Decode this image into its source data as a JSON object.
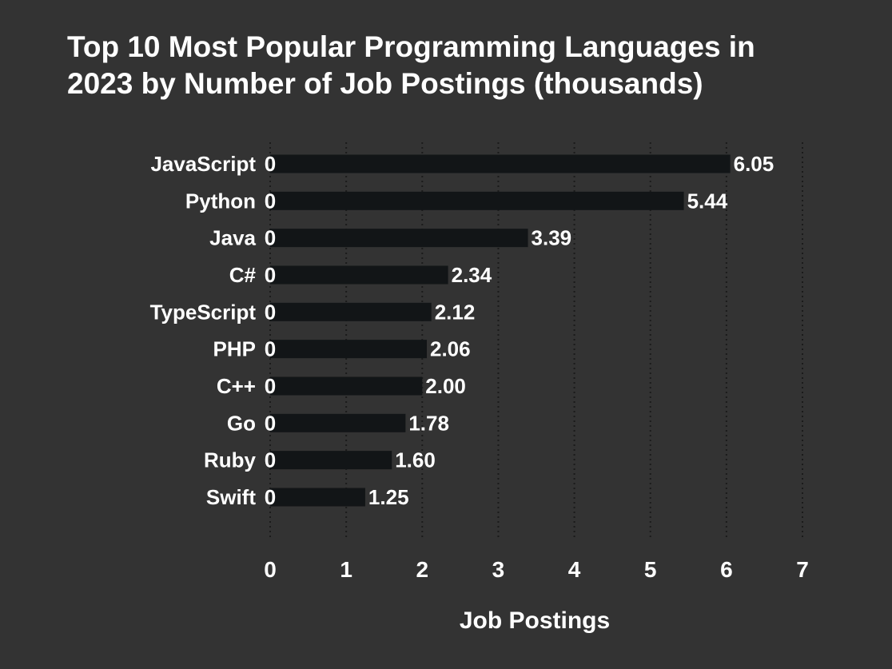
{
  "chart_data": {
    "type": "bar",
    "orientation": "horizontal",
    "title": "Top 10 Most Popular Programming Languages in 2023 by Number of Job Postings (thousands)",
    "categories": [
      "JavaScript",
      "Python",
      "Java",
      "C#",
      "TypeScript",
      "PHP",
      "C++",
      "Go",
      "Ruby",
      "Swift"
    ],
    "values": [
      6.05,
      5.44,
      3.39,
      2.34,
      2.12,
      2.06,
      2.0,
      1.78,
      1.6,
      1.25
    ],
    "xlabel": "Job Postings",
    "ylabel": "",
    "xlim": [
      0,
      7
    ],
    "xticks": [
      0,
      1,
      2,
      3,
      4,
      5,
      6,
      7
    ],
    "grid": "vertical dotted",
    "legend": "none",
    "data_labels": true,
    "colors": {
      "background": "#333333",
      "bar": "#121517",
      "text": "#ffffff",
      "grid": "#1b1b1b"
    }
  }
}
